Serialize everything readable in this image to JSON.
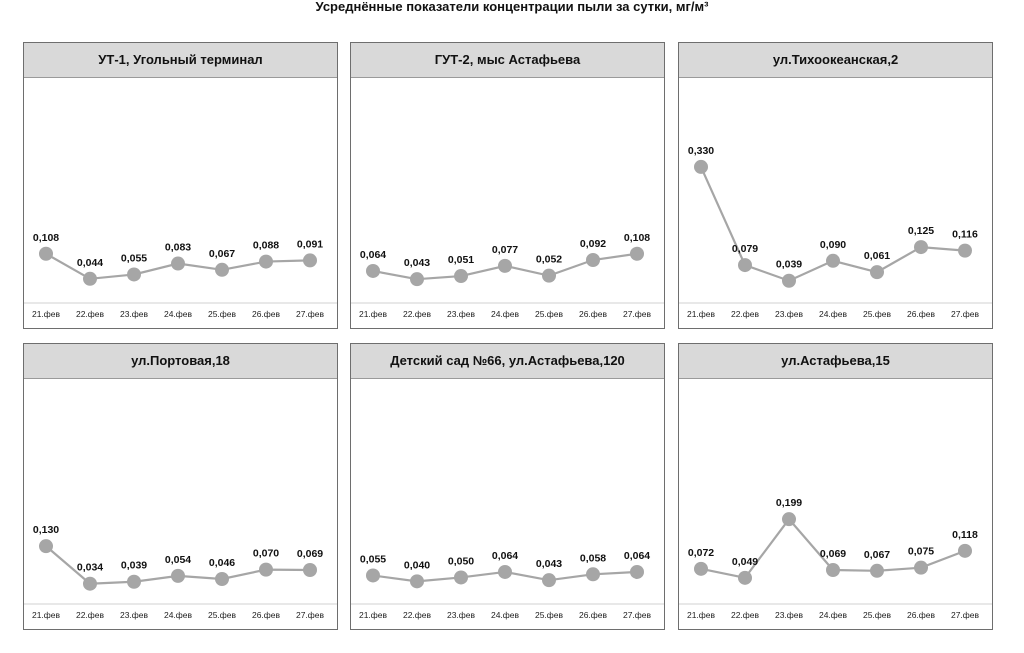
{
  "title": "Усреднённые показатели концентрации пыли за сутки, мг/м³",
  "colors": {
    "line": "#a6a6a6",
    "marker": "#a6a6a6",
    "header_bg": "#d9d9d9",
    "border": "#6e6e6e"
  },
  "chart_data": [
    {
      "type": "line",
      "title": "УТ-1, Угольный терминал",
      "categories": [
        "21.фев",
        "22.фев",
        "23.фев",
        "24.фев",
        "25.фев",
        "26.фев",
        "27.фев"
      ],
      "values": [
        0.108,
        0.044,
        0.055,
        0.083,
        0.067,
        0.088,
        0.091
      ],
      "labels": [
        "0,108",
        "0,044",
        "0,055",
        "0,083",
        "0,067",
        "0,088",
        "0,091"
      ]
    },
    {
      "type": "line",
      "title": "ГУТ-2, мыс Астафьева",
      "categories": [
        "21.фев",
        "22.фев",
        "23.фев",
        "24.фев",
        "25.фев",
        "26.фев",
        "27.фев"
      ],
      "values": [
        0.064,
        0.043,
        0.051,
        0.077,
        0.052,
        0.092,
        0.108
      ],
      "labels": [
        "0,064",
        "0,043",
        "0,051",
        "0,077",
        "0,052",
        "0,092",
        "0,108"
      ]
    },
    {
      "type": "line",
      "title": "ул.Тихоокеанская,2",
      "categories": [
        "21.фев",
        "22.фев",
        "23.фев",
        "24.фев",
        "25.фев",
        "26.фев",
        "27.фев"
      ],
      "values": [
        0.33,
        0.079,
        0.039,
        0.09,
        0.061,
        0.125,
        0.116
      ],
      "labels": [
        "0,330",
        "0,079",
        "0,039",
        "0,090",
        "0,061",
        "0,125",
        "0,116"
      ]
    },
    {
      "type": "line",
      "title": "ул.Портовая,18",
      "categories": [
        "21.фев",
        "22.фев",
        "23.фев",
        "24.фев",
        "25.фев",
        "26.фев",
        "27.фев"
      ],
      "values": [
        0.13,
        0.034,
        0.039,
        0.054,
        0.046,
        0.07,
        0.069
      ],
      "labels": [
        "0,130",
        "0,034",
        "0,039",
        "0,054",
        "0,046",
        "0,070",
        "0,069"
      ]
    },
    {
      "type": "line",
      "title": "Детский сад №66, ул.Астафьева,120",
      "categories": [
        "21.фев",
        "22.фев",
        "23.фев",
        "24.фев",
        "25.фев",
        "26.фев",
        "27.фев"
      ],
      "values": [
        0.055,
        0.04,
        0.05,
        0.064,
        0.043,
        0.058,
        0.064
      ],
      "labels": [
        "0,055",
        "0,040",
        "0,050",
        "0,064",
        "0,043",
        "0,058",
        "0,064"
      ]
    },
    {
      "type": "line",
      "title": "ул.Астафьева,15",
      "categories": [
        "21.фев",
        "22.фев",
        "23.фев",
        "24.фев",
        "25.фев",
        "26.фев",
        "27.фев"
      ],
      "values": [
        0.072,
        0.049,
        0.199,
        0.069,
        0.067,
        0.075,
        0.118
      ],
      "labels": [
        "0,072",
        "0,049",
        "0,199",
        "0,069",
        "0,067",
        "0,075",
        "0,118"
      ]
    }
  ]
}
